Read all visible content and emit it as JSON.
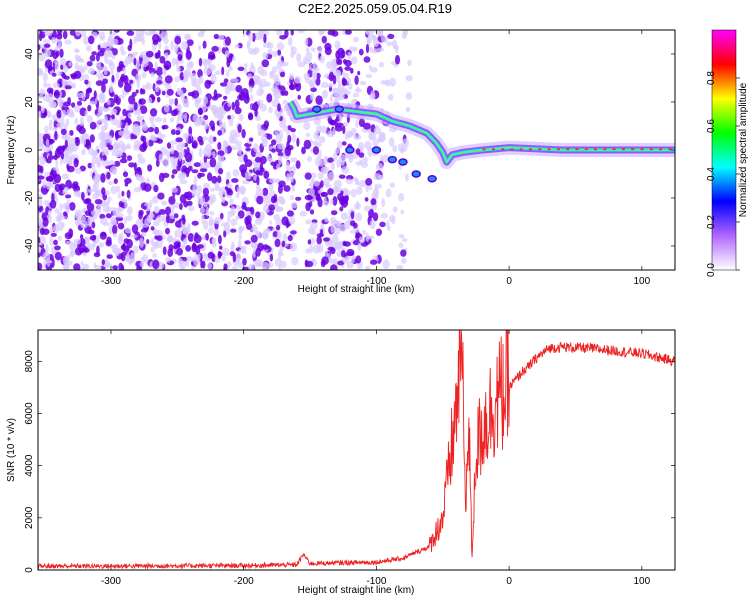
{
  "title": "C2E2.2025.059.05.04.R19",
  "colors": {
    "background": "#ffffff",
    "snr_line": "#ee2222",
    "speckle_dark": "#6a00e0",
    "speckle_light": "#d9c9ff"
  },
  "chart_data": [
    {
      "type": "heatmap",
      "title": "",
      "xlabel": "Height of straight line (km)",
      "ylabel": "Frequency (Hz)",
      "xlim": [
        -355,
        125
      ],
      "ylim": [
        -50,
        50
      ],
      "x_ticks": [
        -300,
        -200,
        -100,
        0,
        100
      ],
      "y_ticks": [
        -40,
        -20,
        0,
        20,
        40
      ],
      "noise_region_x": [
        -355,
        -95
      ],
      "gap_x": [
        -162,
        -152
      ],
      "ridge": {
        "name": "",
        "points": [
          {
            "x": -165,
            "y": 20
          },
          {
            "x": -162,
            "y": 17
          },
          {
            "x": -160,
            "y": 14
          },
          {
            "x": -130,
            "y": 17
          },
          {
            "x": -100,
            "y": 15
          },
          {
            "x": -88,
            "y": 12
          },
          {
            "x": -75,
            "y": 10
          },
          {
            "x": -62,
            "y": 7
          },
          {
            "x": -55,
            "y": 3
          },
          {
            "x": -50,
            "y": -1
          },
          {
            "x": -47,
            "y": -5
          },
          {
            "x": -43,
            "y": -2
          },
          {
            "x": -35,
            "y": -1
          },
          {
            "x": -20,
            "y": 0
          },
          {
            "x": 0,
            "y": 1
          },
          {
            "x": 40,
            "y": 0
          },
          {
            "x": 125,
            "y": 0
          }
        ]
      },
      "colorbar": {
        "label": "Normalized spectral amplitude",
        "range": [
          0.0,
          1.0
        ],
        "ticks": [
          "0.0",
          "0.2",
          "0.4",
          "0.6",
          "0.8"
        ],
        "tick_values": [
          0.0,
          0.2,
          0.4,
          0.6,
          0.8
        ],
        "colors": [
          "#ffffff",
          "#b266ff",
          "#0000ff",
          "#00ffff",
          "#00ff00",
          "#ffff00",
          "#ff0000",
          "#ff00ff"
        ]
      }
    },
    {
      "type": "line",
      "title": "",
      "xlabel": "Height of straight line (km)",
      "ylabel": "SNR (10 * v/v)",
      "xlim": [
        -355,
        125
      ],
      "ylim": [
        0,
        9200
      ],
      "x_ticks": [
        -300,
        -200,
        -100,
        0,
        100
      ],
      "y_ticks": [
        0,
        2000,
        4000,
        6000,
        8000
      ],
      "series": [
        {
          "name": "",
          "x": [
            -355,
            -300,
            -250,
            -200,
            -160,
            -155,
            -150,
            -100,
            -80,
            -60,
            -50,
            -45,
            -40,
            -36,
            -33,
            -30,
            -28,
            -25,
            -20,
            -15,
            -10,
            -5,
            0,
            5,
            10,
            15,
            20,
            30,
            40,
            60,
            80,
            100,
            125
          ],
          "values": [
            150,
            150,
            160,
            170,
            200,
            600,
            250,
            300,
            450,
            900,
            2000,
            4000,
            6000,
            9100,
            3000,
            5000,
            500,
            4500,
            5500,
            6000,
            6500,
            6800,
            7000,
            7300,
            7600,
            7800,
            8100,
            8500,
            8550,
            8500,
            8400,
            8300,
            8000
          ]
        }
      ]
    }
  ]
}
